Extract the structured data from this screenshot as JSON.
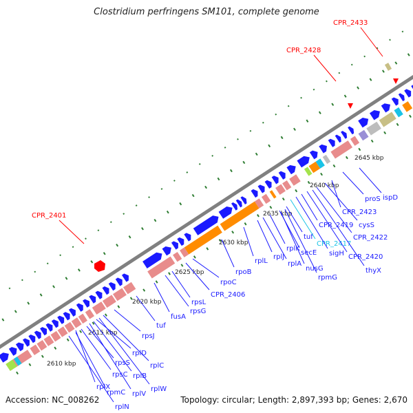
{
  "title": "Clostridium perfringens SM101, complete genome",
  "footer": {
    "accession": "Accession: NC_008262",
    "summary": "Topology: circular; Length: 2,897,393 bp; Genes: 2,670"
  },
  "colors": {
    "blue": "#1a1aff",
    "pink": "#e88c8c",
    "orange": "#ff8c00",
    "backbone": "#808080",
    "red": "#ff0000",
    "tick": "#2e7d32",
    "cyan": "#19c3e6",
    "lavender": "#9a8fd6",
    "khaki": "#c8bf86",
    "grey": "#bdbdbd",
    "green": "#a4e34c",
    "callout_red": "#ff0000",
    "callout_blue": "#1a1aff",
    "callout_cyan": "#19c3e6"
  },
  "scale": [
    "2610 kbp",
    "2615 kbp",
    "2620 kbp",
    "2625 kbp",
    "2630 kbp",
    "2635 kbp",
    "2640 kbp",
    "2645 kbp"
  ],
  "callouts": [
    {
      "text": "CPR_2401",
      "color": "red"
    },
    {
      "text": "CPR_2428",
      "color": "red"
    },
    {
      "text": "CPR_2433",
      "color": "red"
    },
    {
      "text": "rplX",
      "color": "blue"
    },
    {
      "text": "rplN",
      "color": "blue"
    },
    {
      "text": "rpmC",
      "color": "blue"
    },
    {
      "text": "rpsC",
      "color": "blue"
    },
    {
      "text": "rpsS",
      "color": "blue"
    },
    {
      "text": "rplV",
      "color": "blue"
    },
    {
      "text": "rplB",
      "color": "blue"
    },
    {
      "text": "rplW",
      "color": "blue"
    },
    {
      "text": "rplC",
      "color": "blue"
    },
    {
      "text": "rplD",
      "color": "blue"
    },
    {
      "text": "rpsJ",
      "color": "blue"
    },
    {
      "text": "tuf",
      "color": "blue"
    },
    {
      "text": "fusA",
      "color": "blue"
    },
    {
      "text": "rpsG",
      "color": "blue"
    },
    {
      "text": "rpsL",
      "color": "blue"
    },
    {
      "text": "CPR_2406",
      "color": "blue"
    },
    {
      "text": "rpoC",
      "color": "blue"
    },
    {
      "text": "rpoB",
      "color": "blue"
    },
    {
      "text": "rplL",
      "color": "blue"
    },
    {
      "text": "rplJ",
      "color": "blue"
    },
    {
      "text": "rplA",
      "color": "blue"
    },
    {
      "text": "rplK",
      "color": "blue"
    },
    {
      "text": "nusG",
      "color": "blue"
    },
    {
      "text": "rpmG",
      "color": "blue"
    },
    {
      "text": "secE",
      "color": "blue"
    },
    {
      "text": "tuf",
      "color": "blue"
    },
    {
      "text": "CPR_2417",
      "color": "cyan"
    },
    {
      "text": "sigH",
      "color": "blue"
    },
    {
      "text": "CPR_2419",
      "color": "blue"
    },
    {
      "text": "CPR_2420",
      "color": "blue"
    },
    {
      "text": "thyX",
      "color": "blue"
    },
    {
      "text": "CPR_2422",
      "color": "blue"
    },
    {
      "text": "cysS",
      "color": "blue"
    },
    {
      "text": "CPR_2423",
      "color": "blue"
    },
    {
      "text": "proS",
      "color": "blue"
    },
    {
      "text": "ispD",
      "color": "blue"
    }
  ]
}
